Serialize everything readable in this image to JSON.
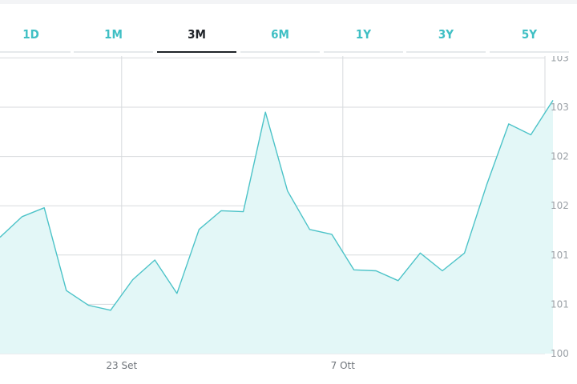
{
  "tabs": [
    {
      "label": "1D",
      "active": false
    },
    {
      "label": "1M",
      "active": false
    },
    {
      "label": "3M",
      "active": true
    },
    {
      "label": "6M",
      "active": false
    },
    {
      "label": "1Y",
      "active": false
    },
    {
      "label": "3Y",
      "active": false
    },
    {
      "label": "5Y",
      "active": false
    }
  ],
  "colors": {
    "accent": "#3fbfc4",
    "line": "#4cc3c8",
    "fill": "#e3f7f7",
    "grid": "#d7dadd",
    "active_tab": "#1f2328"
  },
  "chart_data": {
    "type": "area",
    "y_tick_labels": [
      "100",
      "101",
      "101",
      "102",
      "102",
      "103",
      "103",
      "104"
    ],
    "y_ticks": [
      100,
      100.5,
      101,
      101.5,
      102,
      102.5,
      103,
      103.5
    ],
    "ylim": [
      100,
      104
    ],
    "x_tick_labels": [
      "23 Set",
      "7 Ott"
    ],
    "x_tick_index": [
      5.5,
      15.5
    ],
    "grid": true,
    "y_axis_position": "right",
    "values": [
      101.18,
      101.39,
      101.48,
      100.64,
      100.49,
      100.44,
      100.75,
      100.95,
      100.61,
      101.26,
      101.45,
      101.44,
      102.45,
      101.65,
      101.26,
      101.21,
      100.85,
      100.84,
      100.74,
      101.02,
      100.84,
      101.02,
      101.71,
      102.33,
      102.22,
      102.57
    ]
  }
}
